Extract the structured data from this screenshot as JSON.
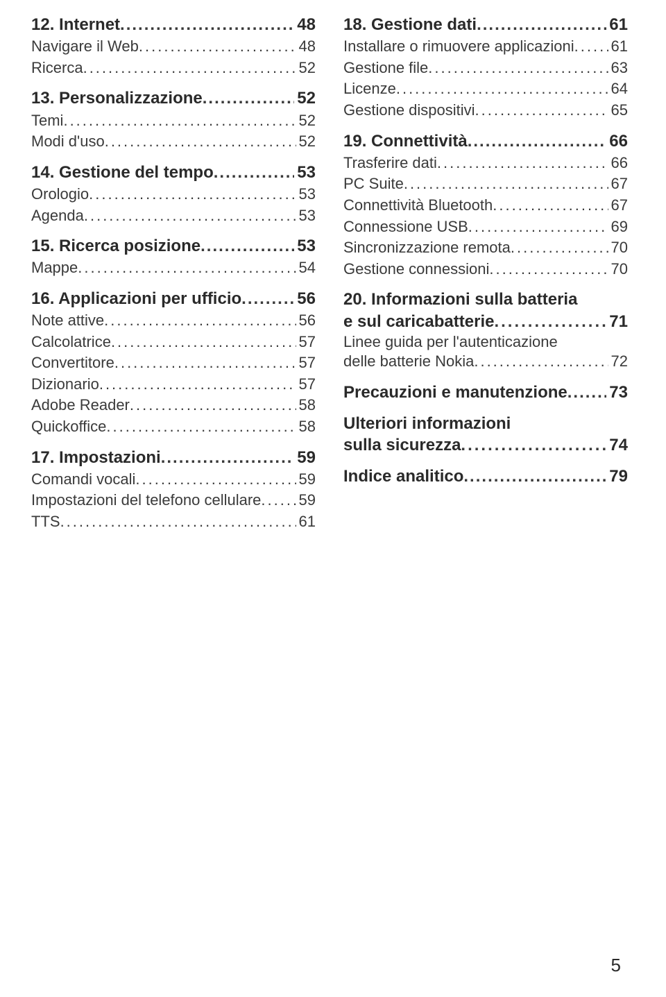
{
  "page_number": "5",
  "columns": [
    [
      {
        "type": "heading",
        "first": true,
        "label": "12. Internet",
        "page": "48"
      },
      {
        "type": "sub",
        "label": "Navigare il Web",
        "page": "48"
      },
      {
        "type": "sub",
        "label": "Ricerca",
        "page": "52"
      },
      {
        "type": "heading",
        "label": "13. Personalizzazione",
        "page": "52"
      },
      {
        "type": "sub",
        "label": "Temi",
        "page": "52"
      },
      {
        "type": "sub",
        "label": "Modi d'uso",
        "page": "52"
      },
      {
        "type": "heading",
        "label": "14. Gestione del tempo",
        "page": "53"
      },
      {
        "type": "sub",
        "label": "Orologio",
        "page": "53"
      },
      {
        "type": "sub",
        "label": "Agenda",
        "page": "53"
      },
      {
        "type": "heading",
        "label": "15. Ricerca posizione",
        "page": "53"
      },
      {
        "type": "sub",
        "label": "Mappe",
        "page": "54"
      },
      {
        "type": "heading",
        "label": "16. Applicazioni per ufficio",
        "page": "56"
      },
      {
        "type": "sub",
        "label": "Note attive",
        "page": "56"
      },
      {
        "type": "sub",
        "label": "Calcolatrice",
        "page": "57"
      },
      {
        "type": "sub",
        "label": "Convertitore",
        "page": "57"
      },
      {
        "type": "sub",
        "label": "Dizionario",
        "page": "57"
      },
      {
        "type": "sub",
        "label": "Adobe Reader",
        "page": "58"
      },
      {
        "type": "sub",
        "label": "Quickoffice",
        "page": "58"
      },
      {
        "type": "heading",
        "label": "17. Impostazioni",
        "page": "59"
      },
      {
        "type": "sub",
        "label": "Comandi vocali",
        "page": "59"
      },
      {
        "type": "sub",
        "label": "Impostazioni del telefono cellulare",
        "page": "59"
      },
      {
        "type": "sub",
        "label": "TTS",
        "page": "61"
      }
    ],
    [
      {
        "type": "heading",
        "first": true,
        "label": "18. Gestione dati",
        "page": "61"
      },
      {
        "type": "sub",
        "label": "Installare o rimuovere applicazioni",
        "page": "61"
      },
      {
        "type": "sub",
        "label": "Gestione file",
        "page": "63"
      },
      {
        "type": "sub",
        "label": "Licenze",
        "page": "64"
      },
      {
        "type": "sub",
        "label": "Gestione dispositivi",
        "page": "65"
      },
      {
        "type": "heading",
        "label": "19. Connettività",
        "page": "66"
      },
      {
        "type": "sub",
        "label": "Trasferire dati",
        "page": "66"
      },
      {
        "type": "sub",
        "label": "PC Suite",
        "page": "67"
      },
      {
        "type": "sub",
        "label": "Connettività Bluetooth",
        "page": "67"
      },
      {
        "type": "sub",
        "label": "Connessione USB",
        "page": "69"
      },
      {
        "type": "sub",
        "label": "Sincronizzazione remota",
        "page": "70"
      },
      {
        "type": "sub",
        "label": "Gestione connessioni",
        "page": "70"
      },
      {
        "type": "heading-multi",
        "line1": "20. Informazioni sulla batteria",
        "line2": "e sul caricabatterie",
        "page": "71"
      },
      {
        "type": "sub-multi",
        "line1": "Linee guida per l'autenticazione",
        "line2": "delle batterie Nokia",
        "page": "72"
      },
      {
        "type": "heading",
        "label": "Precauzioni e manutenzione",
        "page": "73"
      },
      {
        "type": "heading-multi",
        "line1": "Ulteriori informazioni",
        "line2": "sulla sicurezza",
        "page": "74"
      },
      {
        "type": "heading",
        "label": "Indice analitico",
        "page": "79"
      }
    ]
  ]
}
